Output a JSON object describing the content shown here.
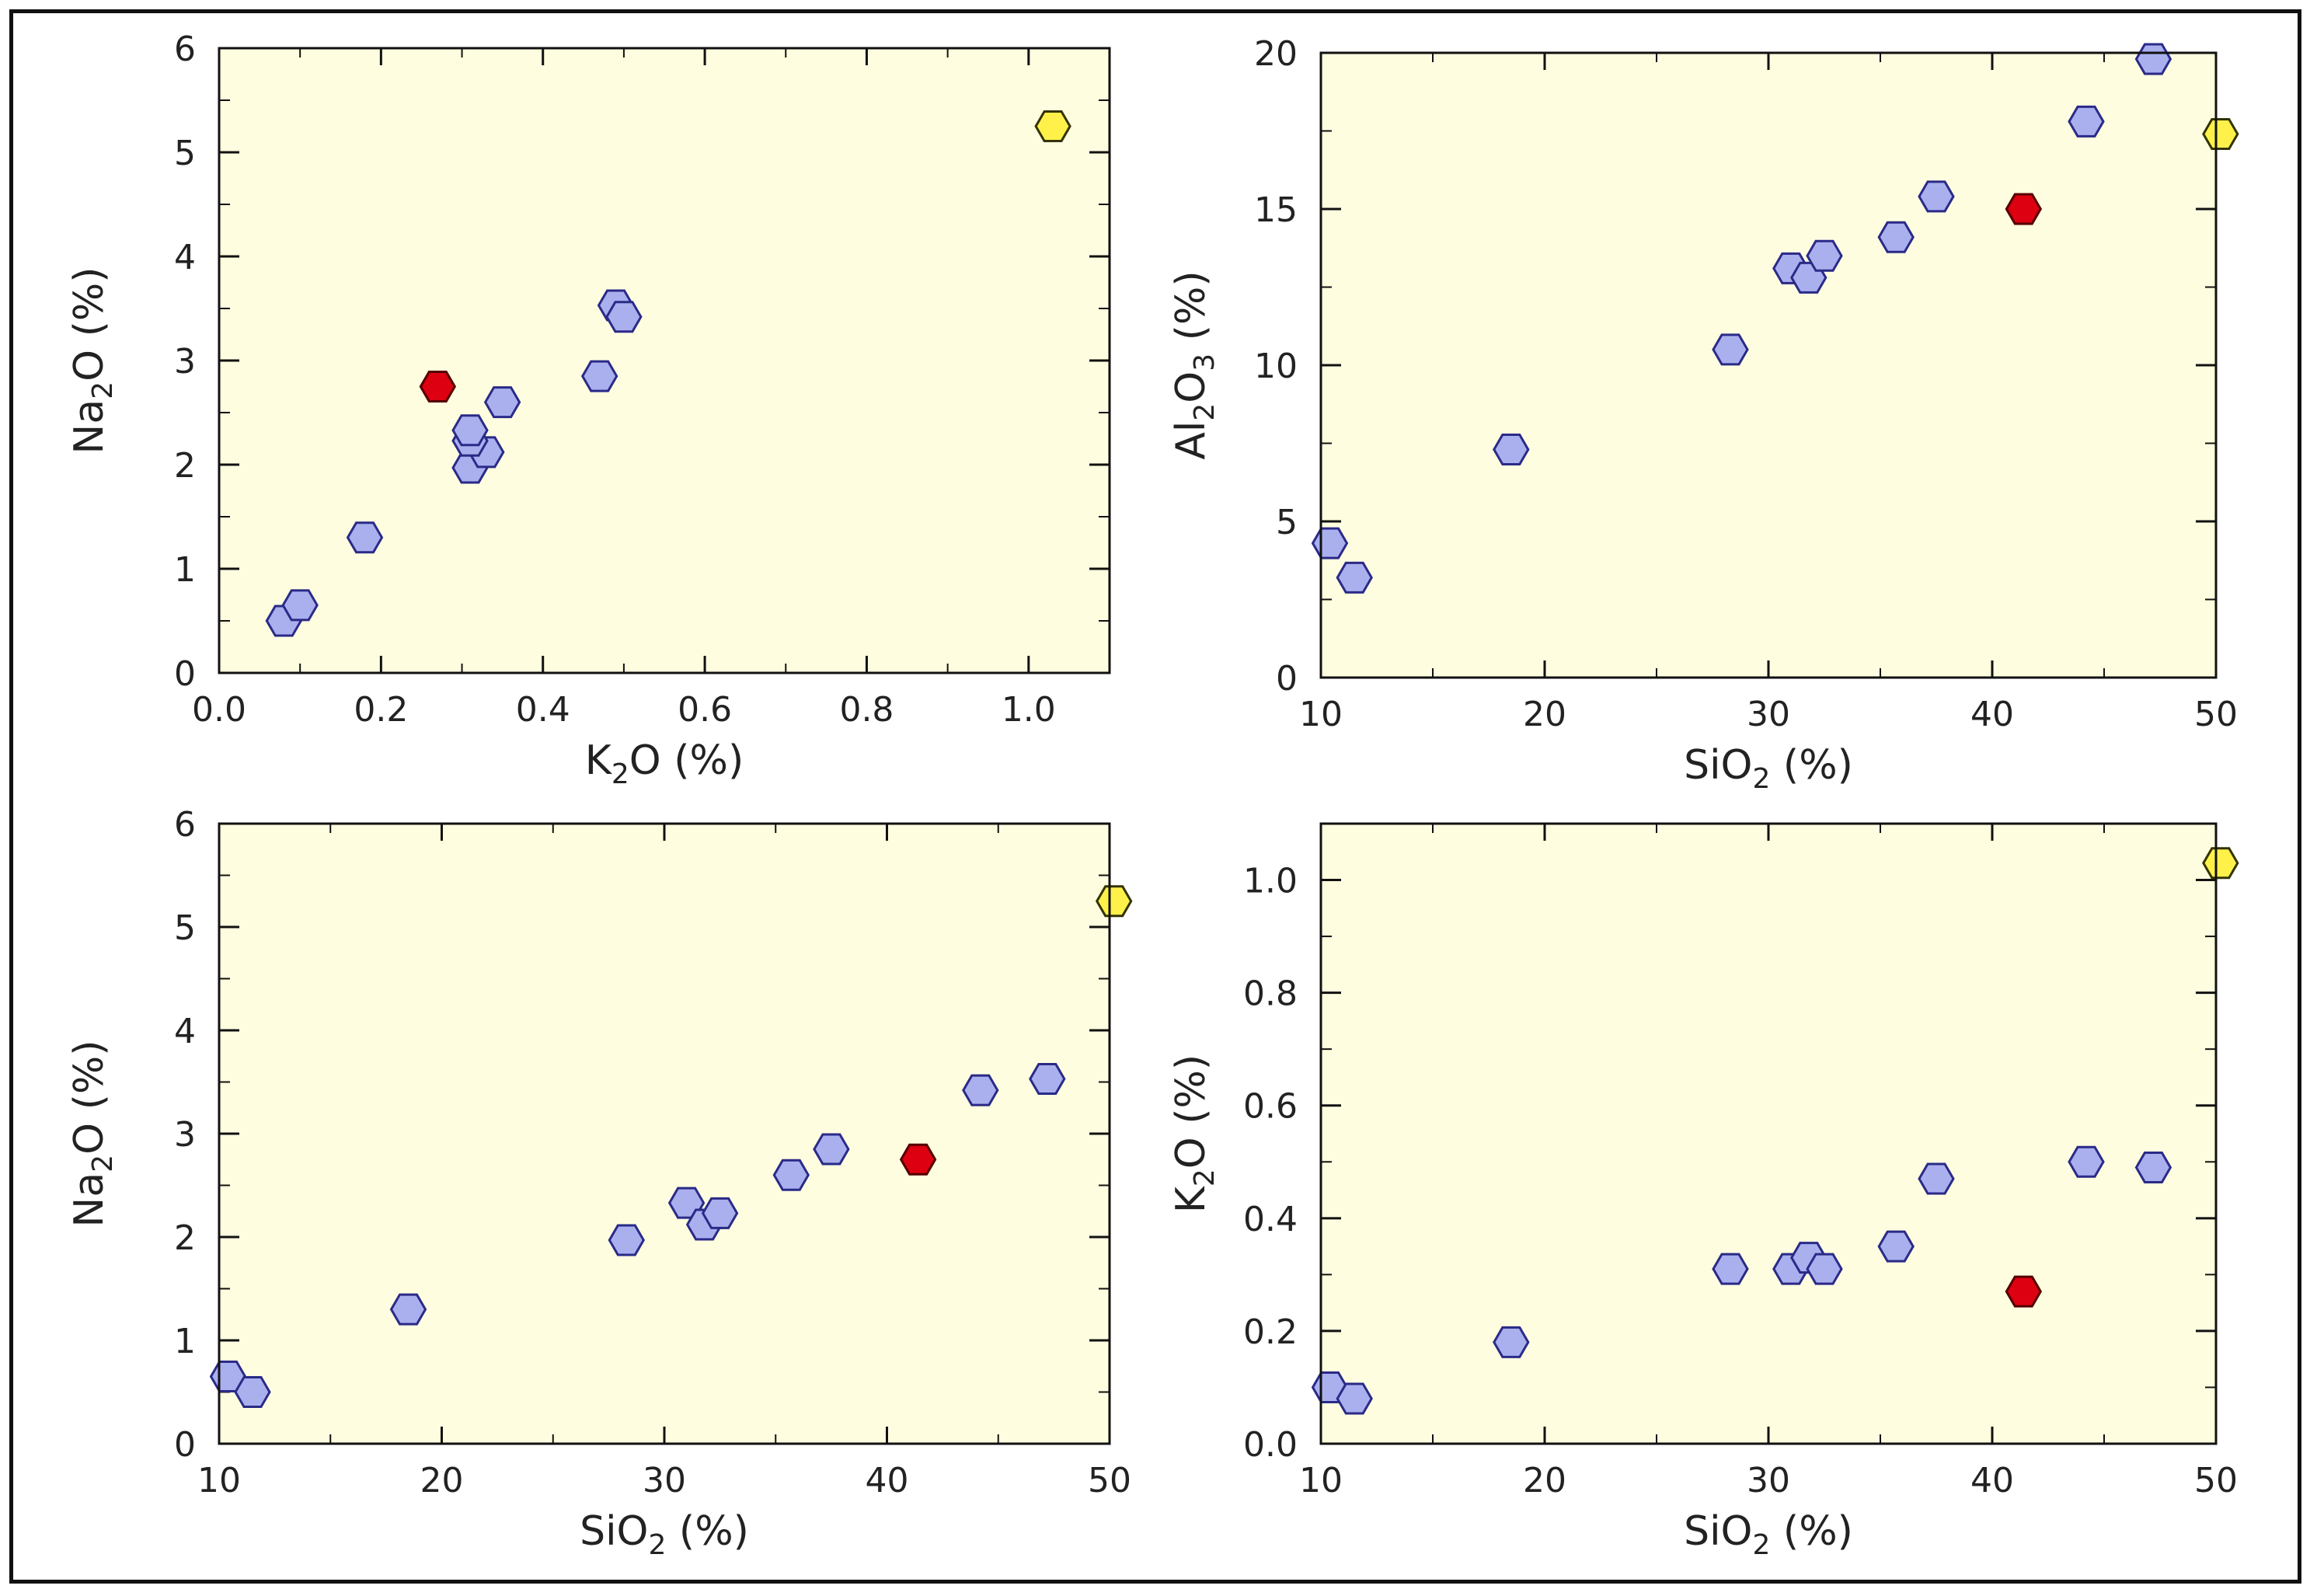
{
  "colors": {
    "plot_bg": "#fffde0",
    "axis": "#111111",
    "sample": "#aab0ee",
    "sample_edge": "#2a2a88",
    "red": "#dd0011",
    "red_edge": "#550000",
    "yellow": "#fff14a",
    "yellow_edge": "#333300"
  },
  "chart_data": [
    {
      "type": "scatter",
      "id": "k2o-vs-na2o",
      "xlabel": {
        "base": "K",
        "sub": "2",
        "rest": "O (%)"
      },
      "ylabel": {
        "base": "Na",
        "sub": "2",
        "rest": "O (%)"
      },
      "xlim": [
        0.0,
        1.1
      ],
      "ylim": [
        0,
        6
      ],
      "xticks": [
        0.0,
        0.2,
        0.4,
        0.6,
        0.8,
        1.0
      ],
      "xtick_labels": [
        "0.0",
        "0.2",
        "0.4",
        "0.6",
        "0.8",
        "1.0"
      ],
      "yticks": [
        0,
        1,
        2,
        3,
        4,
        5,
        6
      ],
      "ytick_labels": [
        "0",
        "1",
        "2",
        "3",
        "4",
        "5",
        "6"
      ],
      "points": [
        {
          "x": 0.08,
          "y": 0.5,
          "kind": "sample"
        },
        {
          "x": 0.1,
          "y": 0.65,
          "kind": "sample"
        },
        {
          "x": 0.18,
          "y": 1.3,
          "kind": "sample"
        },
        {
          "x": 0.31,
          "y": 1.97,
          "kind": "sample"
        },
        {
          "x": 0.33,
          "y": 2.12,
          "kind": "sample"
        },
        {
          "x": 0.31,
          "y": 2.23,
          "kind": "sample"
        },
        {
          "x": 0.31,
          "y": 2.33,
          "kind": "sample"
        },
        {
          "x": 0.35,
          "y": 2.6,
          "kind": "sample"
        },
        {
          "x": 0.47,
          "y": 2.85,
          "kind": "sample"
        },
        {
          "x": 0.49,
          "y": 3.53,
          "kind": "sample"
        },
        {
          "x": 0.5,
          "y": 3.42,
          "kind": "sample"
        },
        {
          "x": 0.27,
          "y": 2.75,
          "kind": "red"
        },
        {
          "x": 1.03,
          "y": 5.25,
          "kind": "yellow"
        }
      ]
    },
    {
      "type": "scatter",
      "id": "sio2-vs-al2o3",
      "xlabel": {
        "base": "SiO",
        "sub": "2",
        "rest": " (%)"
      },
      "ylabel": {
        "base": "Al",
        "sub": "2",
        "mid": "O",
        "sub2": "3",
        "rest": " (%)"
      },
      "xlim": [
        10,
        50
      ],
      "ylim": [
        0,
        20
      ],
      "xticks": [
        10,
        20,
        30,
        40,
        50
      ],
      "xtick_labels": [
        "10",
        "20",
        "30",
        "40",
        "50"
      ],
      "yticks": [
        0,
        5,
        10,
        15,
        20
      ],
      "ytick_labels": [
        "0",
        "5",
        "10",
        "15",
        "20"
      ],
      "points": [
        {
          "x": 10.4,
          "y": 4.3,
          "kind": "sample"
        },
        {
          "x": 11.5,
          "y": 3.2,
          "kind": "sample"
        },
        {
          "x": 18.5,
          "y": 7.3,
          "kind": "sample"
        },
        {
          "x": 28.3,
          "y": 10.5,
          "kind": "sample"
        },
        {
          "x": 31.0,
          "y": 13.1,
          "kind": "sample"
        },
        {
          "x": 31.8,
          "y": 12.8,
          "kind": "sample"
        },
        {
          "x": 32.5,
          "y": 13.5,
          "kind": "sample"
        },
        {
          "x": 35.7,
          "y": 14.1,
          "kind": "sample"
        },
        {
          "x": 37.5,
          "y": 15.4,
          "kind": "sample"
        },
        {
          "x": 44.2,
          "y": 17.8,
          "kind": "sample"
        },
        {
          "x": 47.2,
          "y": 19.8,
          "kind": "sample"
        },
        {
          "x": 41.4,
          "y": 15.0,
          "kind": "red"
        },
        {
          "x": 50.2,
          "y": 17.4,
          "kind": "yellow"
        }
      ]
    },
    {
      "type": "scatter",
      "id": "sio2-vs-na2o",
      "xlabel": {
        "base": "SiO",
        "sub": "2",
        "rest": " (%)"
      },
      "ylabel": {
        "base": "Na",
        "sub": "2",
        "rest": "O (%)"
      },
      "xlim": [
        10,
        50
      ],
      "ylim": [
        0,
        6
      ],
      "xticks": [
        10,
        20,
        30,
        40,
        50
      ],
      "xtick_labels": [
        "10",
        "20",
        "30",
        "40",
        "50"
      ],
      "yticks": [
        0,
        1,
        2,
        3,
        4,
        5,
        6
      ],
      "ytick_labels": [
        "0",
        "1",
        "2",
        "3",
        "4",
        "5",
        "6"
      ],
      "points": [
        {
          "x": 10.4,
          "y": 0.65,
          "kind": "sample"
        },
        {
          "x": 11.5,
          "y": 0.5,
          "kind": "sample"
        },
        {
          "x": 18.5,
          "y": 1.3,
          "kind": "sample"
        },
        {
          "x": 28.3,
          "y": 1.97,
          "kind": "sample"
        },
        {
          "x": 31.0,
          "y": 2.33,
          "kind": "sample"
        },
        {
          "x": 31.8,
          "y": 2.12,
          "kind": "sample"
        },
        {
          "x": 32.5,
          "y": 2.23,
          "kind": "sample"
        },
        {
          "x": 35.7,
          "y": 2.6,
          "kind": "sample"
        },
        {
          "x": 37.5,
          "y": 2.85,
          "kind": "sample"
        },
        {
          "x": 44.2,
          "y": 3.42,
          "kind": "sample"
        },
        {
          "x": 47.2,
          "y": 3.53,
          "kind": "sample"
        },
        {
          "x": 41.4,
          "y": 2.75,
          "kind": "red"
        },
        {
          "x": 50.2,
          "y": 5.25,
          "kind": "yellow"
        }
      ]
    },
    {
      "type": "scatter",
      "id": "sio2-vs-k2o",
      "xlabel": {
        "base": "SiO",
        "sub": "2",
        "rest": " (%)"
      },
      "ylabel": {
        "base": "K",
        "sub": "2",
        "rest": "O (%)"
      },
      "xlim": [
        10,
        50
      ],
      "ylim": [
        0.0,
        1.1
      ],
      "xticks": [
        10,
        20,
        30,
        40,
        50
      ],
      "xtick_labels": [
        "10",
        "20",
        "30",
        "40",
        "50"
      ],
      "yticks": [
        0.0,
        0.2,
        0.4,
        0.6,
        0.8,
        1.0
      ],
      "ytick_labels": [
        "0.0",
        "0.2",
        "0.4",
        "0.6",
        "0.8",
        "1.0"
      ],
      "points": [
        {
          "x": 10.4,
          "y": 0.1,
          "kind": "sample"
        },
        {
          "x": 11.5,
          "y": 0.08,
          "kind": "sample"
        },
        {
          "x": 18.5,
          "y": 0.18,
          "kind": "sample"
        },
        {
          "x": 28.3,
          "y": 0.31,
          "kind": "sample"
        },
        {
          "x": 31.0,
          "y": 0.31,
          "kind": "sample"
        },
        {
          "x": 31.8,
          "y": 0.33,
          "kind": "sample"
        },
        {
          "x": 32.5,
          "y": 0.31,
          "kind": "sample"
        },
        {
          "x": 35.7,
          "y": 0.35,
          "kind": "sample"
        },
        {
          "x": 37.5,
          "y": 0.47,
          "kind": "sample"
        },
        {
          "x": 44.2,
          "y": 0.5,
          "kind": "sample"
        },
        {
          "x": 47.2,
          "y": 0.49,
          "kind": "sample"
        },
        {
          "x": 41.4,
          "y": 0.27,
          "kind": "red"
        },
        {
          "x": 50.2,
          "y": 1.03,
          "kind": "yellow"
        }
      ]
    }
  ]
}
